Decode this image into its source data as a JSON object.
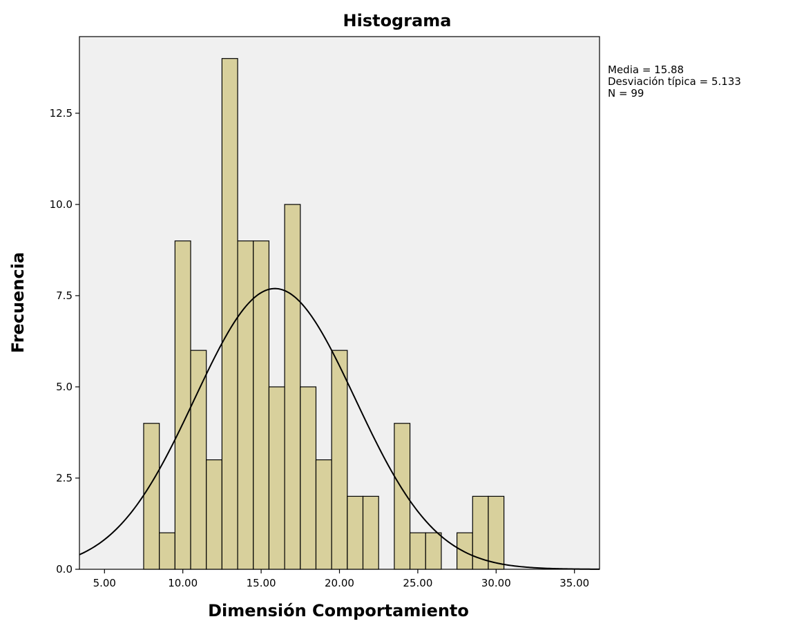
{
  "chart_data": {
    "type": "histogram",
    "title": "Histograma",
    "xlabel": "Dimensión Comportamiento",
    "ylabel": "Frecuencia",
    "xlim": [
      3.4,
      36.6
    ],
    "ylim": [
      0,
      14.6
    ],
    "bin_width": 1,
    "bins": [
      {
        "x": 8,
        "count": 4
      },
      {
        "x": 9,
        "count": 1
      },
      {
        "x": 10,
        "count": 9
      },
      {
        "x": 11,
        "count": 6
      },
      {
        "x": 12,
        "count": 3
      },
      {
        "x": 13,
        "count": 14
      },
      {
        "x": 14,
        "count": 9
      },
      {
        "x": 15,
        "count": 9
      },
      {
        "x": 16,
        "count": 5
      },
      {
        "x": 17,
        "count": 10
      },
      {
        "x": 18,
        "count": 5
      },
      {
        "x": 19,
        "count": 3
      },
      {
        "x": 20,
        "count": 6
      },
      {
        "x": 21,
        "count": 2
      },
      {
        "x": 22,
        "count": 2
      },
      {
        "x": 24,
        "count": 4
      },
      {
        "x": 25,
        "count": 1
      },
      {
        "x": 26,
        "count": 1
      },
      {
        "x": 28,
        "count": 1
      },
      {
        "x": 29,
        "count": 2
      },
      {
        "x": 30,
        "count": 2
      }
    ],
    "x_ticks": [
      {
        "value": 5,
        "label": "5.00"
      },
      {
        "value": 10,
        "label": "10.00"
      },
      {
        "value": 15,
        "label": "15.00"
      },
      {
        "value": 20,
        "label": "20.00"
      },
      {
        "value": 25,
        "label": "25.00"
      },
      {
        "value": 30,
        "label": "30.00"
      },
      {
        "value": 35,
        "label": "35.00"
      }
    ],
    "y_ticks": [
      {
        "value": 0,
        "label": "0.0"
      },
      {
        "value": 2.5,
        "label": "2.5"
      },
      {
        "value": 5,
        "label": "5.0"
      },
      {
        "value": 7.5,
        "label": "7.5"
      },
      {
        "value": 10,
        "label": "10.0"
      },
      {
        "value": 12.5,
        "label": "12.5"
      }
    ],
    "normal_curve": {
      "mean": 15.88,
      "sd": 5.133,
      "n": 99
    },
    "stats_text": {
      "mean": "Media = 15.88",
      "sd": "Desviación típica = 5.133",
      "n": "N = 99"
    },
    "colors": {
      "bar_fill": "#d8d09c",
      "bar_stroke": "#000000",
      "plot_background": "#f0f0f0",
      "curve": "#000000"
    }
  }
}
